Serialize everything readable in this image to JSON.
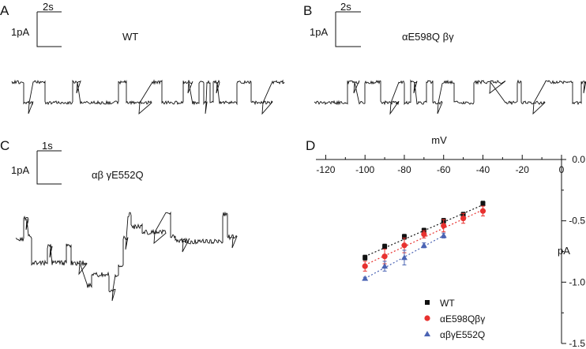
{
  "panels": {
    "A": {
      "letter": "A",
      "title": "WT",
      "time_scale": "2s",
      "current_scale": "1pA"
    },
    "B": {
      "letter": "B",
      "title": "αE598Q βγ",
      "time_scale": "2s",
      "current_scale": "1pA"
    },
    "C": {
      "letter": "C",
      "title": "αβ γE552Q",
      "time_scale": "1s",
      "current_scale": "1pA"
    },
    "D": {
      "letter": "D"
    }
  },
  "chart_data": {
    "type": "scatter",
    "title": "",
    "xlabel": "mV",
    "ylabel": "pA",
    "xlim": [
      -125,
      0
    ],
    "ylim": [
      -1.5,
      0
    ],
    "x_ticks": [
      "-120",
      "-100",
      "-80",
      "-60",
      "-40",
      "-20",
      "0"
    ],
    "x_tick_values": [
      -120,
      -100,
      -80,
      -60,
      -40,
      -20,
      0
    ],
    "y_ticks": [
      "0.0",
      "-0.5",
      "-1.0",
      "-1.5"
    ],
    "y_tick_values": [
      0,
      -0.5,
      -1.0,
      -1.5
    ],
    "legend_position": "bottom-right",
    "series": [
      {
        "name": "WT",
        "marker": "square",
        "color": "#111111",
        "x": [
          -100,
          -90,
          -80,
          -70,
          -60,
          -50,
          -40
        ],
        "y": [
          -0.8,
          -0.71,
          -0.63,
          -0.58,
          -0.5,
          -0.45,
          -0.36
        ],
        "err": [
          0.02,
          0.02,
          0.02,
          0.02,
          0.02,
          0.02,
          0.02
        ],
        "fit": [
          [
            -100,
            -0.79
          ],
          [
            -40,
            -0.37
          ]
        ]
      },
      {
        "name": "αE598Qβγ",
        "marker": "circle",
        "color": "#e8312f",
        "x": [
          -100,
          -90,
          -80,
          -70,
          -60,
          -50,
          -40
        ],
        "y": [
          -0.87,
          -0.79,
          -0.7,
          -0.61,
          -0.54,
          -0.48,
          -0.42
        ],
        "err": [
          0.04,
          0.06,
          0.06,
          0.03,
          0.05,
          0.04,
          0.04
        ],
        "fit": [
          [
            -100,
            -0.86
          ],
          [
            -40,
            -0.41
          ]
        ]
      },
      {
        "name": "αβγE552Q",
        "marker": "triangle",
        "color": "#4b64b4",
        "x": [
          -100,
          -90,
          -80,
          -70,
          -60
        ],
        "y": [
          -0.97,
          -0.87,
          -0.8,
          -0.7,
          -0.62
        ],
        "err": [
          0.01,
          0.04,
          0.06,
          0.02,
          0.02
        ],
        "fit": [
          [
            -100,
            -0.97
          ],
          [
            -60,
            -0.62
          ]
        ]
      }
    ]
  },
  "colors": {
    "wt": "#111111",
    "alpha_mut": "#e8312f",
    "gamma_mut": "#4b64b4"
  }
}
